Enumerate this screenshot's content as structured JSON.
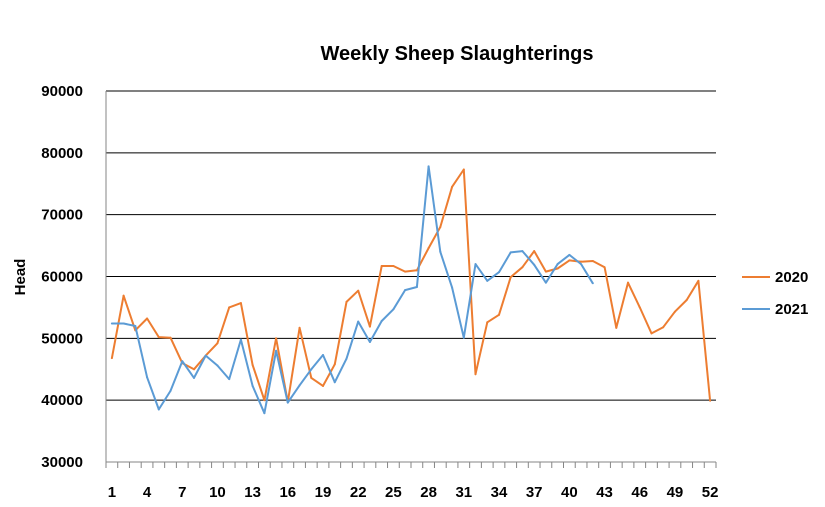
{
  "chart_data": {
    "type": "line",
    "title": "Weekly Sheep Slaughterings",
    "xlabel": "",
    "ylabel": "Head",
    "ylim": [
      30000,
      90000
    ],
    "yticks": [
      30000,
      40000,
      50000,
      60000,
      70000,
      80000,
      90000
    ],
    "ytick_labels": [
      "30000",
      "40000",
      "50000",
      "60000",
      "70000",
      "80000",
      "90000"
    ],
    "xlim": [
      1,
      52
    ],
    "xticks": [
      1,
      4,
      7,
      10,
      13,
      16,
      19,
      22,
      25,
      28,
      31,
      34,
      37,
      40,
      43,
      46,
      49,
      52
    ],
    "xtick_labels": [
      "1",
      "4",
      "7",
      "10",
      "13",
      "16",
      "19",
      "22",
      "25",
      "28",
      "31",
      "34",
      "37",
      "40",
      "43",
      "46",
      "49",
      "52"
    ],
    "grid": "horizontal",
    "legend_position": "right",
    "series": [
      {
        "name": "2020",
        "color": "#ED7D31",
        "x": [
          1,
          2,
          3,
          4,
          5,
          6,
          7,
          8,
          9,
          10,
          11,
          12,
          13,
          14,
          15,
          16,
          17,
          18,
          19,
          20,
          21,
          22,
          23,
          24,
          25,
          26,
          27,
          28,
          29,
          30,
          31,
          32,
          33,
          34,
          35,
          36,
          37,
          38,
          39,
          40,
          41,
          42,
          43,
          44,
          45,
          46,
          47,
          48,
          49,
          50,
          51,
          52
        ],
        "values": [
          46800,
          56900,
          51300,
          53200,
          50200,
          50100,
          46000,
          45000,
          47200,
          49200,
          55000,
          55700,
          45700,
          40000,
          50000,
          39700,
          51700,
          43600,
          42300,
          45800,
          55900,
          57700,
          51900,
          61700,
          61700,
          60800,
          61000,
          64600,
          68000,
          74500,
          77300,
          44200,
          52600,
          53800,
          59900,
          61500,
          64100,
          60800,
          61300,
          62600,
          62400,
          62500,
          61500,
          51700,
          59000,
          55000,
          50800,
          51800,
          54300,
          56200,
          59300,
          39900
        ]
      },
      {
        "name": "2021",
        "color": "#5B9BD5",
        "x": [
          1,
          2,
          3,
          4,
          5,
          6,
          7,
          8,
          9,
          10,
          11,
          12,
          13,
          14,
          15,
          16,
          17,
          18,
          19,
          20,
          21,
          22,
          23,
          24,
          25,
          26,
          27,
          28,
          29,
          30,
          31,
          32,
          33,
          34,
          35,
          36,
          37,
          38,
          39,
          40,
          41,
          42
        ],
        "values": [
          52400,
          52400,
          52000,
          43700,
          38500,
          41500,
          46300,
          43600,
          47200,
          45600,
          43400,
          49800,
          42300,
          37900,
          48000,
          39600,
          42400,
          45000,
          47300,
          42900,
          46700,
          52700,
          49400,
          52800,
          54700,
          57800,
          58300,
          77800,
          64000,
          58200,
          50100,
          62000,
          59300,
          60700,
          63900,
          64100,
          61900,
          59000,
          62000,
          63500,
          62000,
          58900
        ]
      }
    ]
  }
}
